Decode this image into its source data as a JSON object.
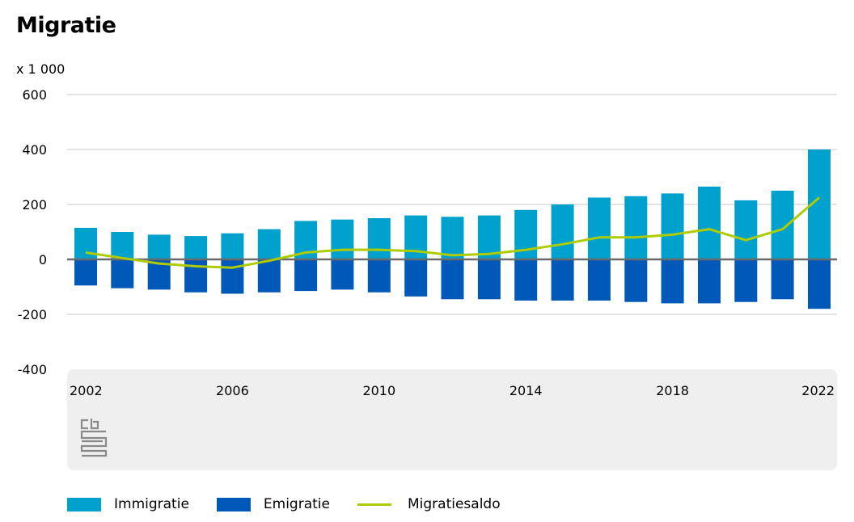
{
  "chart_data": {
    "type": "bar",
    "title": "Migratie",
    "unit_label": "x 1 000",
    "ylim": [
      -400,
      600
    ],
    "y_ticks": [
      600,
      400,
      200,
      0,
      -200,
      -400
    ],
    "y_tick_labels": [
      "600",
      "400",
      "200",
      "0",
      "-200",
      "-400"
    ],
    "x_tick_labels": [
      "2002",
      "2006",
      "2010",
      "2014",
      "2018",
      "2022"
    ],
    "x": [
      2002,
      2003,
      2004,
      2005,
      2006,
      2007,
      2008,
      2009,
      2010,
      2011,
      2012,
      2013,
      2014,
      2015,
      2016,
      2017,
      2018,
      2019,
      2020,
      2021,
      2022
    ],
    "series": [
      {
        "name": "Immigratie",
        "type": "bar",
        "color": "#00a1cd",
        "values": [
          115,
          100,
          90,
          85,
          95,
          110,
          140,
          145,
          150,
          160,
          155,
          160,
          180,
          200,
          225,
          230,
          240,
          265,
          215,
          250,
          400
        ]
      },
      {
        "name": "Emigratie",
        "type": "bar",
        "color": "#0058b8",
        "values": [
          -95,
          -105,
          -110,
          -120,
          -125,
          -120,
          -115,
          -110,
          -120,
          -135,
          -145,
          -145,
          -150,
          -150,
          -150,
          -155,
          -160,
          -160,
          -155,
          -145,
          -180
        ]
      },
      {
        "name": "Migratiesaldo",
        "type": "line",
        "color": "#afcb05",
        "values": [
          25,
          5,
          -15,
          -25,
          -30,
          -5,
          25,
          35,
          35,
          30,
          15,
          20,
          35,
          55,
          80,
          80,
          90,
          110,
          70,
          110,
          225
        ]
      }
    ],
    "grid": true,
    "legend_position": "bottom-left"
  },
  "logo_text": "cbs"
}
